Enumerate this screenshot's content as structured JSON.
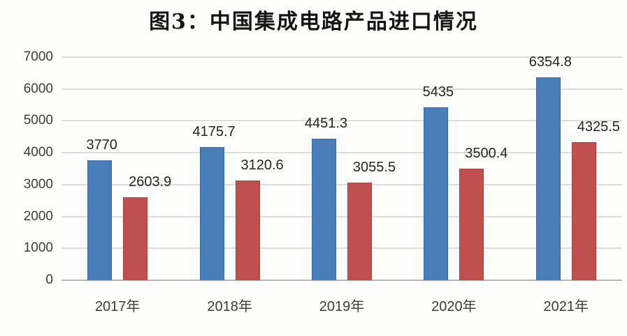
{
  "title": "图3：中国集成电路产品进口情况",
  "chart_data": {
    "type": "bar",
    "title": "图3：中国集成电路产品进口情况",
    "categories": [
      "2017年",
      "2018年",
      "2019年",
      "2020年",
      "2021年"
    ],
    "series": [
      {
        "name": "blue-series",
        "color": "#4a7ebb",
        "border_color": "#3c689c",
        "values": [
          3770,
          4175.7,
          4451.3,
          5435,
          6354.8
        ],
        "labels": [
          "3770",
          "4175.7",
          "4451.3",
          "5435",
          "6354.8"
        ]
      },
      {
        "name": "red-series",
        "color": "#c0504d",
        "border_color": "#9e403e",
        "values": [
          2603.9,
          3120.6,
          3055.5,
          3500.4,
          4325.5
        ],
        "labels": [
          "2603.9",
          "3120.6",
          "3055.5",
          "3500.4",
          "4325.5"
        ]
      }
    ],
    "xlabel": "",
    "ylabel": "",
    "ylim": [
      0,
      7000
    ],
    "yticks": [
      0,
      1000,
      2000,
      3000,
      4000,
      5000,
      6000,
      7000
    ],
    "grid": true,
    "legend": "none",
    "data_labels": true
  }
}
